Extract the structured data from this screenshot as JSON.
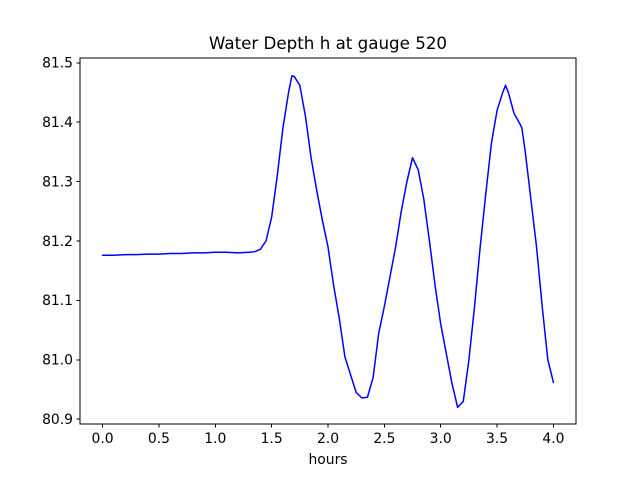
{
  "figure": {
    "background": "#ffffff"
  },
  "chart_data": {
    "type": "line",
    "title": "Water Depth h at gauge 520",
    "xlabel": "hours",
    "ylabel": "",
    "legend": "none",
    "grid": false,
    "line_color": "#0000ff",
    "line_width": 1.5,
    "spine_color": "#000000",
    "text_color": "#000000",
    "xlim": [
      -0.2,
      4.2
    ],
    "ylim": [
      80.892,
      81.508
    ],
    "xticks": [
      0.0,
      0.5,
      1.0,
      1.5,
      2.0,
      2.5,
      3.0,
      3.5,
      4.0
    ],
    "yticks": [
      80.9,
      81.0,
      81.1,
      81.2,
      81.3,
      81.4,
      81.5
    ],
    "x": [
      0.0,
      0.1,
      0.2,
      0.3,
      0.4,
      0.5,
      0.6,
      0.7,
      0.8,
      0.9,
      1.0,
      1.1,
      1.2,
      1.3,
      1.35,
      1.4,
      1.45,
      1.5,
      1.55,
      1.6,
      1.65,
      1.68,
      1.7,
      1.75,
      1.8,
      1.85,
      1.9,
      1.95,
      2.0,
      2.05,
      2.1,
      2.15,
      2.2,
      2.25,
      2.3,
      2.35,
      2.4,
      2.45,
      2.5,
      2.55,
      2.6,
      2.65,
      2.7,
      2.75,
      2.8,
      2.85,
      2.9,
      2.95,
      3.0,
      3.05,
      3.1,
      3.15,
      3.2,
      3.25,
      3.3,
      3.35,
      3.4,
      3.45,
      3.5,
      3.55,
      3.575,
      3.6,
      3.65,
      3.7,
      3.72,
      3.75,
      3.8,
      3.85,
      3.9,
      3.95,
      4.0
    ],
    "y": [
      81.176,
      81.176,
      81.177,
      81.177,
      81.178,
      81.178,
      81.179,
      81.179,
      81.18,
      81.18,
      81.181,
      81.181,
      81.18,
      81.181,
      81.182,
      81.186,
      81.2,
      81.24,
      81.31,
      81.39,
      81.45,
      81.478,
      81.477,
      81.462,
      81.41,
      81.34,
      81.285,
      81.235,
      81.19,
      81.125,
      81.07,
      81.005,
      80.975,
      80.945,
      80.936,
      80.937,
      80.97,
      81.045,
      81.09,
      81.14,
      81.19,
      81.25,
      81.3,
      81.34,
      81.32,
      81.27,
      81.2,
      81.125,
      81.06,
      81.01,
      80.96,
      80.92,
      80.93,
      81.0,
      81.09,
      81.19,
      81.28,
      81.365,
      81.42,
      81.45,
      81.462,
      81.45,
      81.415,
      81.398,
      81.39,
      81.35,
      81.27,
      81.19,
      81.09,
      81.0,
      80.962
    ]
  }
}
